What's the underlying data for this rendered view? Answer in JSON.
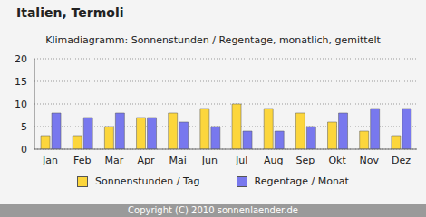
{
  "chart_data": {
    "type": "bar",
    "title": "Italien, Termoli",
    "subtitle": "Klimadiagramm: Sonnenstunden / Regentage, monatlich, gemittelt",
    "footer": "Copyright (C) 2010 sonnenlaender.de",
    "categories": [
      "Jan",
      "Feb",
      "Mar",
      "Apr",
      "Mai",
      "Jun",
      "Jul",
      "Aug",
      "Sep",
      "Okt",
      "Nov",
      "Dez"
    ],
    "series": [
      {
        "name": "Sonnenstunden / Tag",
        "color": "#fcd63c",
        "values": [
          3,
          3,
          5,
          7,
          8,
          9,
          10,
          9,
          8,
          6,
          4,
          3
        ]
      },
      {
        "name": "Regentage / Monat",
        "color": "#7878ee",
        "values": [
          8,
          7,
          8,
          7,
          6,
          5,
          4,
          4,
          5,
          8,
          9,
          9
        ]
      }
    ],
    "ylim": [
      0,
      20
    ],
    "yticks": [
      0,
      5,
      10,
      15,
      20
    ],
    "grid": true,
    "legend": "bottom"
  }
}
